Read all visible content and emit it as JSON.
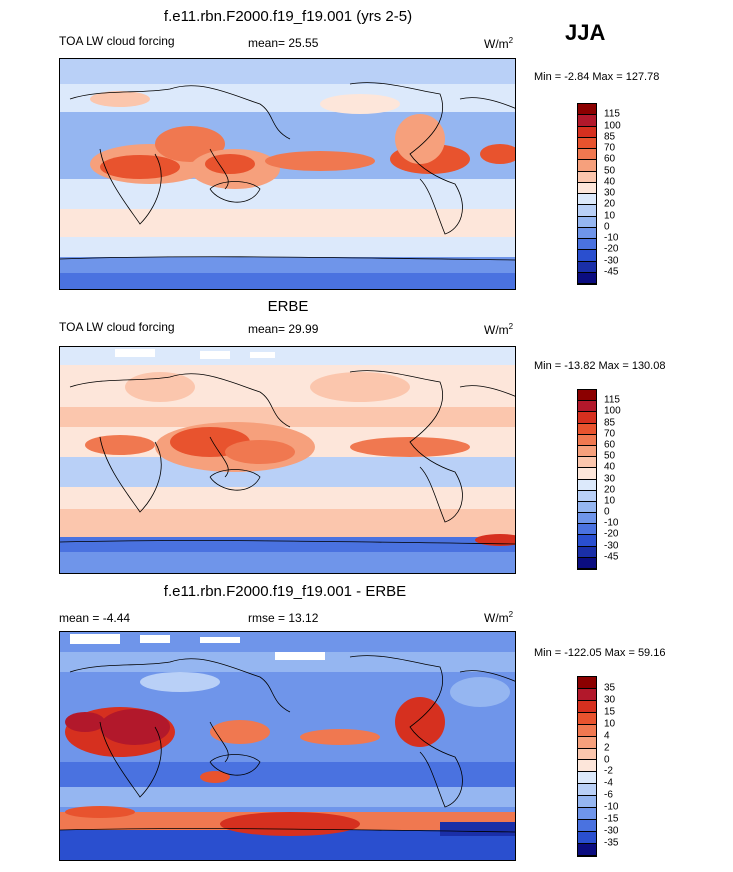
{
  "season": "JJA",
  "units_base": "W/m",
  "units_exp": "2",
  "panels": [
    {
      "title": "f.e11.rbn.F2000.f19_f19.001 (yrs 2-5)",
      "variable": "TOA LW cloud forcing",
      "stat": "mean=  25.55",
      "minmax": "Min =  -2.84 Max = 127.78",
      "levels": [
        "115",
        "100",
        "85",
        "70",
        "60",
        "50",
        "40",
        "30",
        "20",
        "10",
        "0",
        "-10",
        "-20",
        "-30",
        "-45"
      ],
      "colors": [
        "#8b0000",
        "#b2182b",
        "#d6301f",
        "#e8532e",
        "#f07850",
        "#f6a07c",
        "#fbc6ad",
        "#fde6da",
        "#dce9fb",
        "#b9d0f7",
        "#95b6f1",
        "#6f95ea",
        "#4a72e0",
        "#2a4fcf",
        "#1a2fa8",
        "#0b0d80"
      ]
    },
    {
      "title": "ERBE",
      "variable": "TOA LW cloud forcing",
      "stat": "mean=  29.99",
      "minmax": "Min = -13.82 Max = 130.08",
      "levels": [
        "115",
        "100",
        "85",
        "70",
        "60",
        "50",
        "40",
        "30",
        "20",
        "10",
        "0",
        "-10",
        "-20",
        "-30",
        "-45"
      ],
      "colors": [
        "#8b0000",
        "#b2182b",
        "#d6301f",
        "#e8532e",
        "#f07850",
        "#f6a07c",
        "#fbc6ad",
        "#fde6da",
        "#dce9fb",
        "#b9d0f7",
        "#95b6f1",
        "#6f95ea",
        "#4a72e0",
        "#2a4fcf",
        "#1a2fa8",
        "#0b0d80"
      ]
    },
    {
      "title": "f.e11.rbn.F2000.f19_f19.001 - ERBE",
      "variable": "",
      "stat": "mean =  -4.44",
      "rmse": "rmse =  13.12",
      "minmax": "Min = -122.05 Max =  59.16",
      "levels": [
        "35",
        "30",
        "15",
        "10",
        "4",
        "2",
        "0",
        "-2",
        "-4",
        "-6",
        "-10",
        "-15",
        "-30",
        "-35"
      ],
      "colors": [
        "#8b0000",
        "#b2182b",
        "#d6301f",
        "#e8532e",
        "#f07850",
        "#f6a07c",
        "#fbc6ad",
        "#fde6da",
        "#dce9fb",
        "#b9d0f7",
        "#95b6f1",
        "#6f95ea",
        "#4a72e0",
        "#2a4fcf",
        "#0b0d80"
      ]
    }
  ]
}
